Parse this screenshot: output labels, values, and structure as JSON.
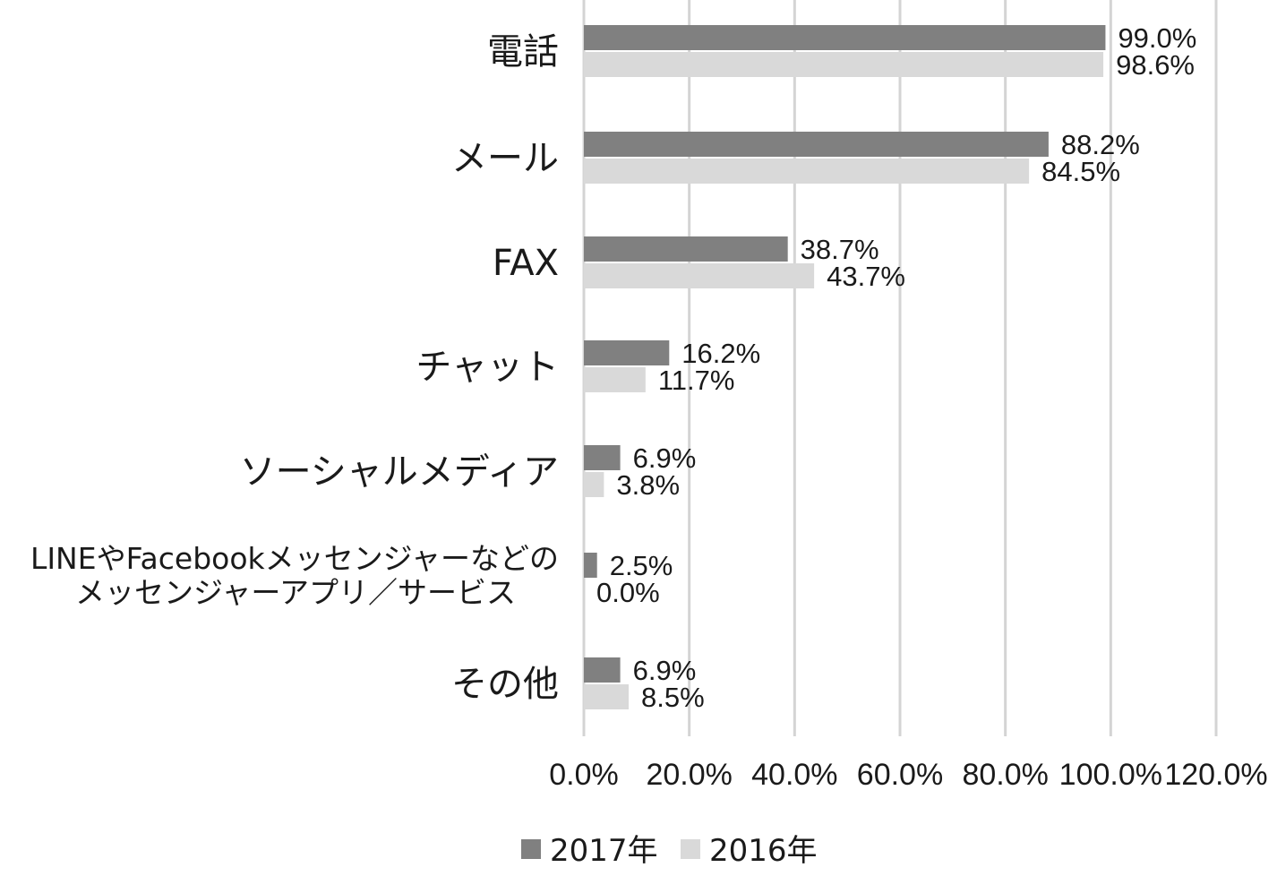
{
  "chart_data": {
    "type": "bar",
    "orientation": "horizontal",
    "categories": [
      "電話",
      "メール",
      "FAX",
      "チャット",
      "ソーシャルメディア",
      "LINEやFacebookメッセンジャーなどの\nメッセンジャーアプリ／サービス",
      "その他"
    ],
    "series": [
      {
        "name": "2017年",
        "color": "#808080",
        "values": [
          99.0,
          88.2,
          38.7,
          16.2,
          6.9,
          2.5,
          6.9
        ],
        "labels": [
          "99.0%",
          "88.2%",
          "38.7%",
          "16.2%",
          "6.9%",
          "2.5%",
          "6.9%"
        ]
      },
      {
        "name": "2016年",
        "color": "#d9d9d9",
        "values": [
          98.6,
          84.5,
          43.7,
          11.7,
          3.8,
          0.0,
          8.5
        ],
        "labels": [
          "98.6%",
          "84.5%",
          "43.7%",
          "11.7%",
          "3.8%",
          "0.0%",
          "8.5%"
        ]
      }
    ],
    "xlim": [
      0,
      120
    ],
    "xticks": [
      "0.0%",
      "20.0%",
      "40.0%",
      "60.0%",
      "80.0%",
      "100.0%",
      "120.0%"
    ],
    "grid": true,
    "legend_position": "bottom",
    "title": "",
    "xlabel": "",
    "ylabel": ""
  }
}
